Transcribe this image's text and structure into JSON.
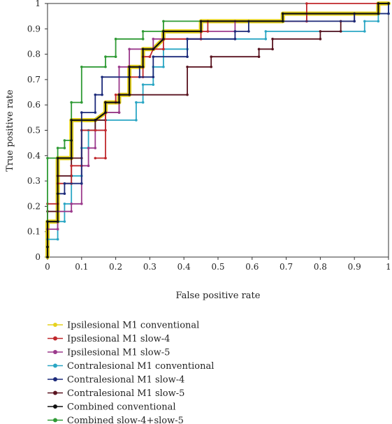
{
  "chart_data": {
    "type": "line",
    "xlabel": "False positive rate",
    "ylabel": "True positive rate",
    "xlim": [
      0,
      1
    ],
    "ylim": [
      0,
      1
    ],
    "x_ticks": [
      "0",
      "0.1",
      "0.2",
      "0.3",
      "0.4",
      "0.5",
      "0.6",
      "0.7",
      "0.8",
      "0.9",
      "1"
    ],
    "y_ticks": [
      "0",
      "0.1",
      "0.2",
      "0.3",
      "0.4",
      "0.5",
      "0.6",
      "0.7",
      "0.8",
      "0.9",
      "1"
    ],
    "legend_position": "below",
    "series": [
      {
        "name": "Ipsilesional M1 conventional",
        "color": "#e6d21e",
        "points": [
          [
            0,
            0
          ],
          [
            0,
            0.04
          ],
          [
            0,
            0.04
          ],
          [
            0,
            0.07
          ],
          [
            0,
            0.11
          ],
          [
            0,
            0.14
          ],
          [
            0.03,
            0.14
          ],
          [
            0.03,
            0.25
          ],
          [
            0.03,
            0.29
          ],
          [
            0.03,
            0.39
          ],
          [
            0.07,
            0.39
          ],
          [
            0.07,
            0.46
          ],
          [
            0.07,
            0.54
          ],
          [
            0.14,
            0.54
          ],
          [
            0.17,
            0.57
          ],
          [
            0.17,
            0.61
          ],
          [
            0.21,
            0.61
          ],
          [
            0.21,
            0.64
          ],
          [
            0.24,
            0.64
          ],
          [
            0.24,
            0.71
          ],
          [
            0.24,
            0.75
          ],
          [
            0.28,
            0.75
          ],
          [
            0.28,
            0.82
          ],
          [
            0.31,
            0.82
          ],
          [
            0.34,
            0.86
          ],
          [
            0.34,
            0.89
          ],
          [
            0.45,
            0.89
          ],
          [
            0.45,
            0.93
          ],
          [
            0.69,
            0.93
          ],
          [
            0.69,
            0.96
          ],
          [
            0.97,
            0.96
          ],
          [
            0.97,
            1
          ],
          [
            1,
            1
          ]
        ]
      },
      {
        "name": "Ipsilesional M1 slow-4",
        "color": "#c0282c",
        "points": [
          [
            0,
            0
          ],
          [
            0,
            0.04
          ],
          [
            0,
            0.21
          ],
          [
            0.03,
            0.21
          ],
          [
            0.03,
            0.29
          ],
          [
            0.07,
            0.29
          ],
          [
            0.07,
            0.36
          ],
          [
            0.1,
            0.36
          ],
          [
            0.1,
            0.5
          ],
          [
            0.14,
            0.5
          ],
          [
            0.17,
            0.5
          ],
          [
            0.17,
            0.39
          ],
          [
            0.14,
            0.39
          ],
          [
            0.17,
            0.39
          ],
          [
            0.17,
            0.61
          ],
          [
            0.2,
            0.61
          ],
          [
            0.2,
            0.64
          ],
          [
            0.24,
            0.64
          ],
          [
            0.24,
            0.71
          ],
          [
            0.28,
            0.71
          ],
          [
            0.28,
            0.79
          ],
          [
            0.3,
            0.79
          ],
          [
            0.31,
            0.82
          ],
          [
            0.34,
            0.82
          ],
          [
            0.34,
            0.86
          ],
          [
            0.45,
            0.86
          ],
          [
            0.45,
            0.89
          ],
          [
            0.47,
            0.89
          ],
          [
            0.47,
            0.93
          ],
          [
            0.76,
            0.93
          ],
          [
            0.76,
            1
          ],
          [
            1,
            1
          ]
        ]
      },
      {
        "name": "Ipsilesional M1 slow-5",
        "color": "#9b3a8c",
        "points": [
          [
            0,
            0
          ],
          [
            0,
            0.04
          ],
          [
            0,
            0.11
          ],
          [
            0.03,
            0.11
          ],
          [
            0.03,
            0.18
          ],
          [
            0.07,
            0.18
          ],
          [
            0.07,
            0.21
          ],
          [
            0.1,
            0.21
          ],
          [
            0.1,
            0.36
          ],
          [
            0.12,
            0.36
          ],
          [
            0.12,
            0.43
          ],
          [
            0.14,
            0.43
          ],
          [
            0.14,
            0.5
          ],
          [
            0.17,
            0.5
          ],
          [
            0.17,
            0.57
          ],
          [
            0.21,
            0.57
          ],
          [
            0.21,
            0.75
          ],
          [
            0.24,
            0.75
          ],
          [
            0.24,
            0.82
          ],
          [
            0.31,
            0.82
          ],
          [
            0.31,
            0.86
          ],
          [
            0.45,
            0.86
          ],
          [
            0.45,
            0.89
          ],
          [
            0.55,
            0.89
          ],
          [
            0.55,
            0.93
          ],
          [
            0.76,
            0.93
          ],
          [
            0.76,
            0.96
          ],
          [
            0.97,
            0.96
          ],
          [
            0.97,
            1
          ],
          [
            1,
            1
          ]
        ]
      },
      {
        "name": "Contralesional M1 conventional",
        "color": "#2aa6c4",
        "points": [
          [
            0,
            0
          ],
          [
            0,
            0.04
          ],
          [
            0,
            0.07
          ],
          [
            0.03,
            0.07
          ],
          [
            0.03,
            0.14
          ],
          [
            0.05,
            0.14
          ],
          [
            0.05,
            0.21
          ],
          [
            0.07,
            0.21
          ],
          [
            0.07,
            0.32
          ],
          [
            0.1,
            0.32
          ],
          [
            0.1,
            0.43
          ],
          [
            0.12,
            0.43
          ],
          [
            0.12,
            0.5
          ],
          [
            0.14,
            0.5
          ],
          [
            0.14,
            0.54
          ],
          [
            0.26,
            0.54
          ],
          [
            0.26,
            0.61
          ],
          [
            0.28,
            0.61
          ],
          [
            0.28,
            0.68
          ],
          [
            0.31,
            0.68
          ],
          [
            0.31,
            0.75
          ],
          [
            0.34,
            0.75
          ],
          [
            0.34,
            0.82
          ],
          [
            0.41,
            0.82
          ],
          [
            0.41,
            0.86
          ],
          [
            0.64,
            0.86
          ],
          [
            0.64,
            0.89
          ],
          [
            0.93,
            0.89
          ],
          [
            0.93,
            0.93
          ],
          [
            0.97,
            0.93
          ],
          [
            0.97,
            0.96
          ],
          [
            1,
            0.96
          ],
          [
            1,
            1
          ]
        ]
      },
      {
        "name": "Contralesional M1 slow-4",
        "color": "#1c2a7a",
        "points": [
          [
            0,
            0
          ],
          [
            0,
            0.04
          ],
          [
            0,
            0.14
          ],
          [
            0.03,
            0.14
          ],
          [
            0.03,
            0.25
          ],
          [
            0.05,
            0.25
          ],
          [
            0.05,
            0.29
          ],
          [
            0.1,
            0.29
          ],
          [
            0.1,
            0.57
          ],
          [
            0.14,
            0.57
          ],
          [
            0.14,
            0.64
          ],
          [
            0.16,
            0.64
          ],
          [
            0.16,
            0.71
          ],
          [
            0.24,
            0.71
          ],
          [
            0.24,
            0.75
          ],
          [
            0.27,
            0.75
          ],
          [
            0.27,
            0.71
          ],
          [
            0.31,
            0.71
          ],
          [
            0.31,
            0.79
          ],
          [
            0.41,
            0.79
          ],
          [
            0.41,
            0.86
          ],
          [
            0.55,
            0.86
          ],
          [
            0.55,
            0.89
          ],
          [
            0.59,
            0.89
          ],
          [
            0.59,
            0.93
          ],
          [
            0.9,
            0.93
          ],
          [
            0.9,
            0.96
          ],
          [
            1,
            0.96
          ],
          [
            1,
            1
          ]
        ]
      },
      {
        "name": "Contralesional M1 slow-5",
        "color": "#5a1420",
        "points": [
          [
            0,
            0
          ],
          [
            0,
            0.04
          ],
          [
            0,
            0.18
          ],
          [
            0.03,
            0.18
          ],
          [
            0.03,
            0.32
          ],
          [
            0.07,
            0.32
          ],
          [
            0.07,
            0.39
          ],
          [
            0.1,
            0.39
          ],
          [
            0.1,
            0.5
          ],
          [
            0.14,
            0.5
          ],
          [
            0.14,
            0.54
          ],
          [
            0.17,
            0.54
          ],
          [
            0.17,
            0.57
          ],
          [
            0.21,
            0.57
          ],
          [
            0.21,
            0.64
          ],
          [
            0.41,
            0.64
          ],
          [
            0.41,
            0.75
          ],
          [
            0.48,
            0.75
          ],
          [
            0.48,
            0.79
          ],
          [
            0.62,
            0.79
          ],
          [
            0.62,
            0.82
          ],
          [
            0.66,
            0.82
          ],
          [
            0.66,
            0.86
          ],
          [
            0.8,
            0.86
          ],
          [
            0.8,
            0.89
          ],
          [
            0.86,
            0.89
          ],
          [
            0.86,
            0.93
          ],
          [
            0.9,
            0.93
          ],
          [
            0.9,
            0.96
          ],
          [
            0.97,
            0.96
          ],
          [
            0.97,
            1
          ],
          [
            1,
            1
          ]
        ]
      },
      {
        "name": "Combined conventional",
        "color": "#111111",
        "points": [
          [
            0,
            0
          ],
          [
            0,
            0.04
          ],
          [
            0,
            0.14
          ],
          [
            0.03,
            0.14
          ],
          [
            0.03,
            0.25
          ],
          [
            0.03,
            0.39
          ],
          [
            0.07,
            0.39
          ],
          [
            0.07,
            0.46
          ],
          [
            0.07,
            0.54
          ],
          [
            0.14,
            0.54
          ],
          [
            0.17,
            0.57
          ],
          [
            0.17,
            0.61
          ],
          [
            0.21,
            0.61
          ],
          [
            0.21,
            0.64
          ],
          [
            0.24,
            0.64
          ],
          [
            0.24,
            0.71
          ],
          [
            0.24,
            0.75
          ],
          [
            0.28,
            0.75
          ],
          [
            0.28,
            0.82
          ],
          [
            0.31,
            0.82
          ],
          [
            0.34,
            0.86
          ],
          [
            0.34,
            0.89
          ],
          [
            0.45,
            0.89
          ],
          [
            0.45,
            0.93
          ],
          [
            0.69,
            0.93
          ],
          [
            0.69,
            0.96
          ],
          [
            0.97,
            0.96
          ],
          [
            0.97,
            1
          ],
          [
            1,
            1
          ]
        ]
      },
      {
        "name": "Combined slow-4+slow-5",
        "color": "#2e9a34",
        "points": [
          [
            0,
            0
          ],
          [
            0,
            0.04
          ],
          [
            0,
            0.39
          ],
          [
            0.03,
            0.39
          ],
          [
            0.03,
            0.43
          ],
          [
            0.05,
            0.43
          ],
          [
            0.05,
            0.46
          ],
          [
            0.07,
            0.46
          ],
          [
            0.07,
            0.61
          ],
          [
            0.1,
            0.61
          ],
          [
            0.1,
            0.75
          ],
          [
            0.17,
            0.75
          ],
          [
            0.17,
            0.79
          ],
          [
            0.2,
            0.79
          ],
          [
            0.2,
            0.86
          ],
          [
            0.28,
            0.86
          ],
          [
            0.28,
            0.89
          ],
          [
            0.34,
            0.89
          ],
          [
            0.34,
            0.93
          ],
          [
            0.69,
            0.93
          ],
          [
            0.69,
            0.96
          ],
          [
            0.97,
            0.96
          ],
          [
            0.97,
            1
          ],
          [
            1,
            1
          ]
        ]
      }
    ]
  }
}
